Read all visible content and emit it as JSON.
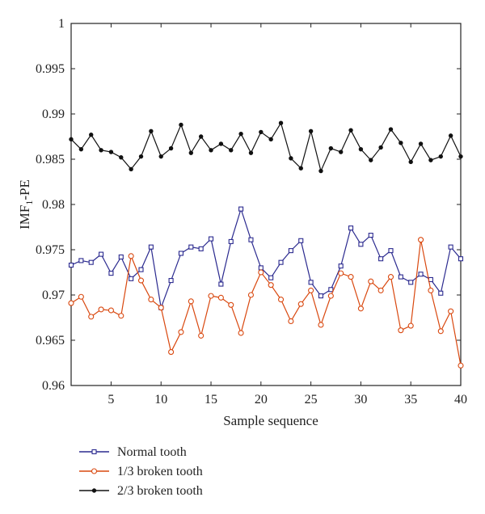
{
  "chart_data": {
    "type": "line",
    "title": "",
    "xlabel": "Sample sequence",
    "ylabel_main": "IMF",
    "ylabel_sub": "1",
    "ylabel_rest": "-PE",
    "xlim": [
      1,
      40
    ],
    "ylim": [
      0.96,
      1
    ],
    "xticks": [
      5,
      10,
      15,
      20,
      25,
      30,
      35,
      40
    ],
    "yticks": [
      0.96,
      0.965,
      0.97,
      0.975,
      0.98,
      0.985,
      0.99,
      0.995,
      1
    ],
    "ytick_labels": [
      "0.96",
      "0.965",
      "0.97",
      "0.975",
      "0.98",
      "0.985",
      "0.99",
      "0.995",
      "1"
    ],
    "grid": false,
    "legend_position": "bottom-left",
    "x": [
      1,
      2,
      3,
      4,
      5,
      6,
      7,
      8,
      9,
      10,
      11,
      12,
      13,
      14,
      15,
      16,
      17,
      18,
      19,
      20,
      21,
      22,
      23,
      24,
      25,
      26,
      27,
      28,
      29,
      30,
      31,
      32,
      33,
      34,
      35,
      36,
      37,
      38,
      39,
      40
    ],
    "series": [
      {
        "name": "Normal tooth",
        "color": "#2b2a8f",
        "marker": "square",
        "values": [
          0.9733,
          0.9738,
          0.9736,
          0.9745,
          0.9724,
          0.9742,
          0.9718,
          0.9728,
          0.9753,
          0.9686,
          0.9716,
          0.9746,
          0.9753,
          0.9751,
          0.9762,
          0.9712,
          0.9759,
          0.9795,
          0.9761,
          0.973,
          0.9719,
          0.9736,
          0.9749,
          0.976,
          0.9714,
          0.9699,
          0.9706,
          0.9732,
          0.9774,
          0.9756,
          0.9766,
          0.974,
          0.9749,
          0.972,
          0.9714,
          0.9723,
          0.9717,
          0.9702,
          0.9753,
          0.974
        ]
      },
      {
        "name": "1/3 broken tooth",
        "color": "#d9480f",
        "marker": "circle",
        "values": [
          0.9691,
          0.9698,
          0.9676,
          0.9684,
          0.9683,
          0.9677,
          0.9743,
          0.9716,
          0.9695,
          0.9686,
          0.9637,
          0.9659,
          0.9693,
          0.9655,
          0.9699,
          0.9697,
          0.9689,
          0.9658,
          0.97,
          0.9725,
          0.9711,
          0.9695,
          0.9671,
          0.969,
          0.9705,
          0.9667,
          0.9699,
          0.9724,
          0.972,
          0.9685,
          0.9715,
          0.9705,
          0.972,
          0.9661,
          0.9666,
          0.9761,
          0.9705,
          0.966,
          0.9682,
          0.9622
        ]
      },
      {
        "name": "2/3 broken tooth",
        "color": "#111111",
        "marker": "dot",
        "values": [
          0.9872,
          0.9861,
          0.9877,
          0.986,
          0.9858,
          0.9852,
          0.9839,
          0.9853,
          0.9881,
          0.9853,
          0.9862,
          0.9888,
          0.9857,
          0.9875,
          0.986,
          0.9867,
          0.986,
          0.9878,
          0.9857,
          0.988,
          0.9872,
          0.989,
          0.9851,
          0.984,
          0.9881,
          0.9837,
          0.9862,
          0.9858,
          0.9882,
          0.9861,
          0.9849,
          0.9863,
          0.9883,
          0.9868,
          0.9847,
          0.9867,
          0.9849,
          0.9853,
          0.9876,
          0.9853
        ]
      }
    ]
  }
}
